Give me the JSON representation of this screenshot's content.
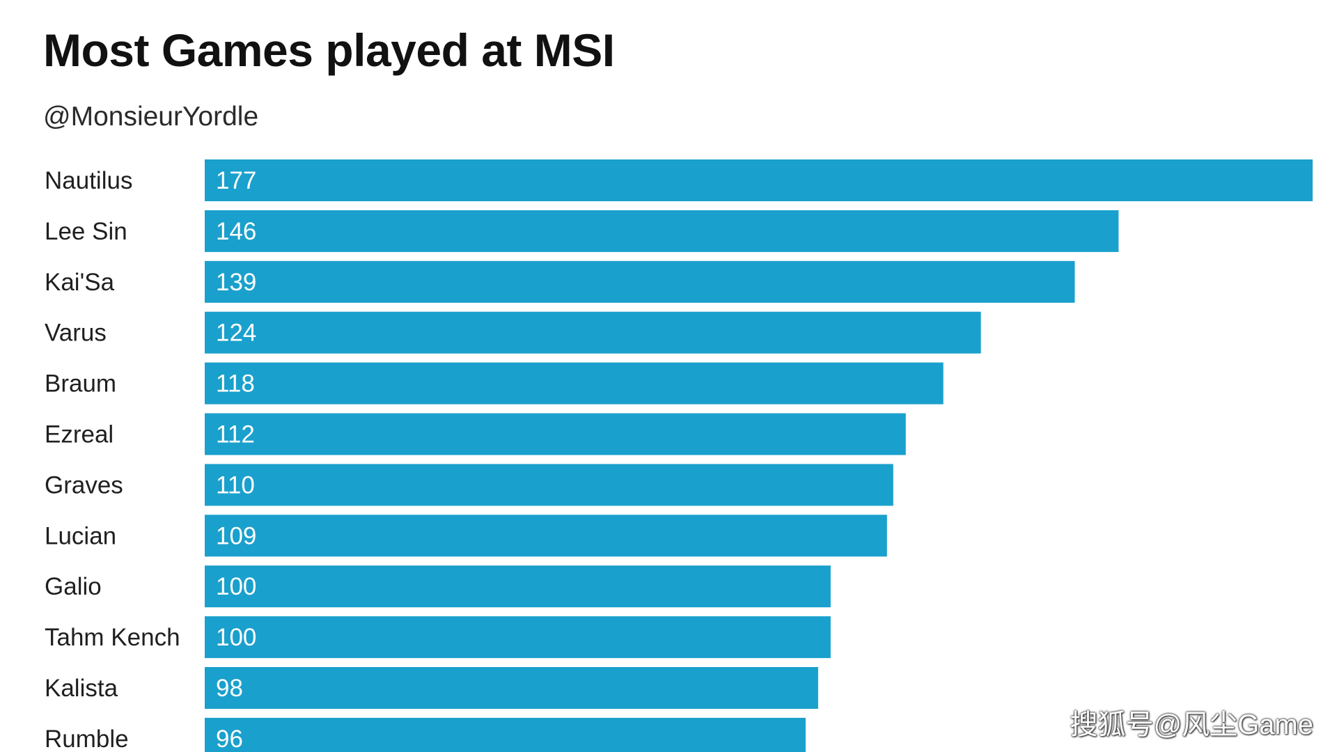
{
  "chart_data": {
    "type": "bar",
    "orientation": "horizontal",
    "title": "Most Games played at MSI",
    "subtitle": "@MonsieurYordle",
    "categories": [
      "Nautilus",
      "Lee Sin",
      "Kai'Sa",
      "Varus",
      "Braum",
      "Ezreal",
      "Graves",
      "Lucian",
      "Galio",
      "Tahm Kench",
      "Kalista",
      "Rumble"
    ],
    "values": [
      177,
      146,
      139,
      124,
      118,
      112,
      110,
      109,
      100,
      100,
      98,
      96
    ],
    "xlim": [
      0,
      177
    ],
    "grid": false,
    "legend": false,
    "bar_color": "#1aa0cc",
    "value_label_color": "#ffffff"
  },
  "watermark": "搜狐号@风尘Game"
}
